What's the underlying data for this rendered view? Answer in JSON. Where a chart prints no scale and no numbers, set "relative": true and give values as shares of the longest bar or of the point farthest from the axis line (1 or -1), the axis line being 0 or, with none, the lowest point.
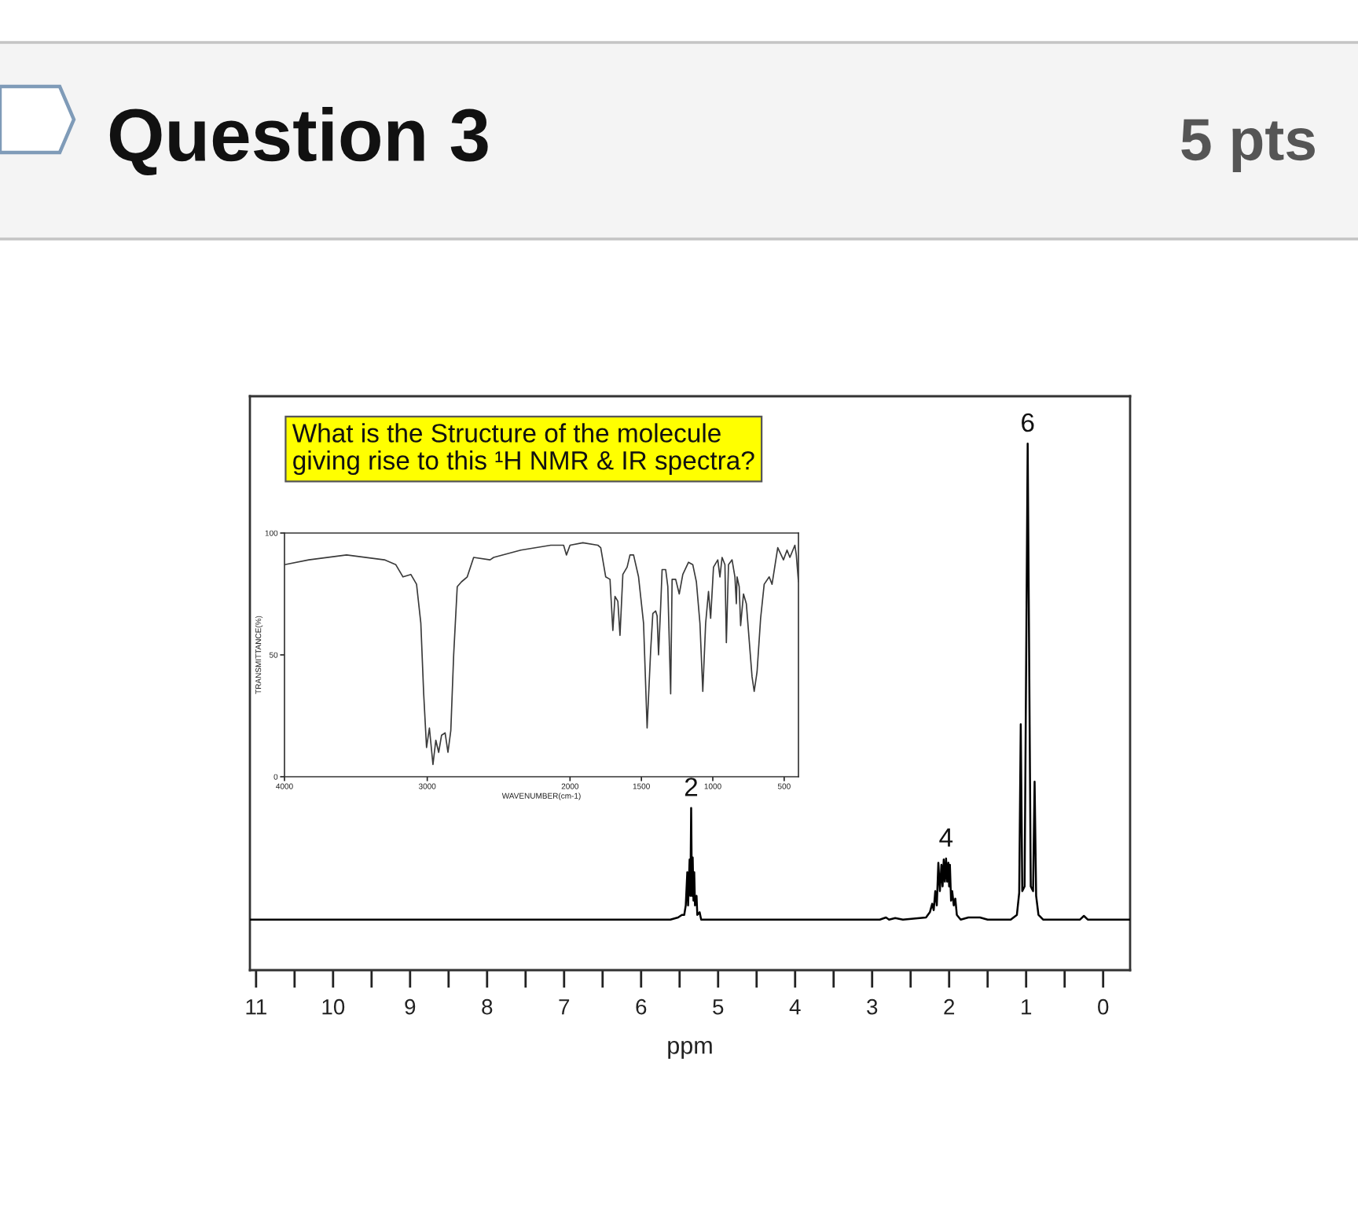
{
  "chart_data": [
    {
      "type": "line",
      "title": "Question 3",
      "xlabel": "ppm",
      "relative": true,
      "color": "#000000",
      "x": [
        11.08,
        5.62,
        5.52,
        5.47,
        5.44,
        5.42,
        5.4,
        5.39,
        5.37,
        5.36,
        5.35,
        5.34,
        5.33,
        5.32,
        5.31,
        5.3,
        5.28,
        5.27,
        5.24,
        5.22,
        2.9,
        2.82,
        2.78,
        2.7,
        2.6,
        2.3,
        2.25,
        2.22,
        2.2,
        2.18,
        2.16,
        2.14,
        2.12,
        2.1,
        2.085,
        2.07,
        2.055,
        2.04,
        2.025,
        2.01,
        2.0,
        1.99,
        1.975,
        1.96,
        1.94,
        1.92,
        1.9,
        1.85,
        1.75,
        1.6,
        1.5,
        1.2,
        1.12,
        1.09,
        1.07,
        1.05,
        1.02,
        0.98,
        0.94,
        0.91,
        0.89,
        0.87,
        0.84,
        0.78,
        0.3,
        0.25,
        0.2,
        -0.35
      ],
      "values": [
        0.096,
        0.096,
        0.1,
        0.105,
        0.105,
        0.123,
        0.186,
        0.123,
        0.21,
        0.141,
        0.308,
        0.141,
        0.214,
        0.132,
        0.186,
        0.123,
        0.141,
        0.105,
        0.11,
        0.096,
        0.096,
        0.1,
        0.096,
        0.099,
        0.096,
        0.1,
        0.11,
        0.126,
        0.114,
        0.15,
        0.123,
        0.204,
        0.15,
        0.2,
        0.159,
        0.21,
        0.168,
        0.212,
        0.168,
        0.204,
        0.159,
        0.2,
        0.132,
        0.15,
        0.123,
        0.136,
        0.105,
        0.096,
        0.1,
        0.1,
        0.096,
        0.096,
        0.105,
        0.147,
        0.467,
        0.15,
        0.159,
        1.0,
        0.159,
        0.15,
        0.358,
        0.141,
        0.105,
        0.096,
        0.096,
        0.103,
        0.096,
        0.096
      ],
      "xlim": [
        11.08,
        -0.35
      ],
      "xticks": [
        11,
        {
          "value": 10.5,
          "label": null
        },
        10,
        {
          "value": 9.5,
          "label": null
        },
        9,
        {
          "value": 8.5,
          "label": null
        },
        8,
        {
          "value": 7.5,
          "label": null
        },
        7,
        {
          "value": 6.5,
          "label": null
        },
        6,
        {
          "value": 5.5,
          "label": null
        },
        5,
        {
          "value": 4.5,
          "label": null
        },
        4,
        {
          "value": 3.5,
          "label": null
        },
        3,
        {
          "value": 2.5,
          "label": null
        },
        2,
        {
          "value": 1.5,
          "label": null
        },
        1,
        {
          "value": 0.5,
          "label": null
        },
        0
      ],
      "annotations": [
        "5 pts",
        "What is the Structure of the molecule\ngiving rise to this ¹H NMR & IR spectra?",
        {
          "text": "2",
          "x": 5.35,
          "y": 0.308
        },
        {
          "text": "4",
          "x": 2.04,
          "y": 0.212
        },
        {
          "text": "6",
          "x": 0.98,
          "y": 1.0
        }
      ]
    },
    {
      "type": "line",
      "xlabel": "WAVENUMBER(cm-1)",
      "ylabel": "TRANSMITTANCE(%)",
      "color": "#3a3a3a",
      "x": [
        4000,
        3830,
        3565,
        3300,
        3220,
        3170,
        3115,
        3075,
        3045,
        3025,
        3005,
        2985,
        2960,
        2940,
        2920,
        2900,
        2875,
        2855,
        2835,
        2815,
        2790,
        2760,
        2720,
        2675,
        2560,
        2535,
        2345,
        2135,
        2045,
        2025,
        2000,
        1910,
        1805,
        1785,
        1750,
        1720,
        1700,
        1685,
        1665,
        1650,
        1630,
        1600,
        1580,
        1555,
        1520,
        1485,
        1460,
        1435,
        1420,
        1400,
        1390,
        1380,
        1365,
        1355,
        1330,
        1315,
        1295,
        1285,
        1260,
        1235,
        1210,
        1170,
        1140,
        1115,
        1090,
        1070,
        1050,
        1030,
        1015,
        995,
        965,
        950,
        935,
        915,
        905,
        890,
        865,
        845,
        835,
        830,
        815,
        805,
        785,
        765,
        745,
        725,
        710,
        690,
        665,
        640,
        605,
        585,
        545,
        505,
        480,
        460,
        425,
        415,
        400
      ],
      "values": [
        87,
        89,
        91,
        89,
        87,
        82,
        83,
        79,
        63,
        34,
        12,
        20,
        5,
        15,
        10,
        17,
        18,
        10,
        19,
        50,
        78,
        80,
        82,
        90,
        89,
        90,
        93,
        95,
        95,
        91,
        95,
        96,
        95,
        94,
        82,
        81,
        60,
        74,
        72,
        58,
        83,
        86,
        91,
        91,
        82,
        63,
        20,
        52,
        67,
        68,
        66,
        50,
        70,
        85,
        85,
        78,
        34,
        81,
        81,
        75,
        83,
        88,
        87,
        80,
        63,
        35,
        63,
        76,
        65,
        86,
        89,
        82,
        90,
        87,
        55,
        87,
        89,
        82,
        71,
        82,
        78,
        62,
        75,
        71,
        56,
        41,
        35,
        43,
        65,
        79,
        82,
        79,
        94,
        89,
        93,
        90,
        95,
        91,
        80
      ],
      "xlim": [
        4000,
        400
      ],
      "xticks": [
        4000,
        3000,
        2000,
        1500,
        1000,
        500
      ],
      "ylim": [
        0,
        100
      ],
      "yticks": [
        0,
        50,
        100
      ]
    }
  ]
}
